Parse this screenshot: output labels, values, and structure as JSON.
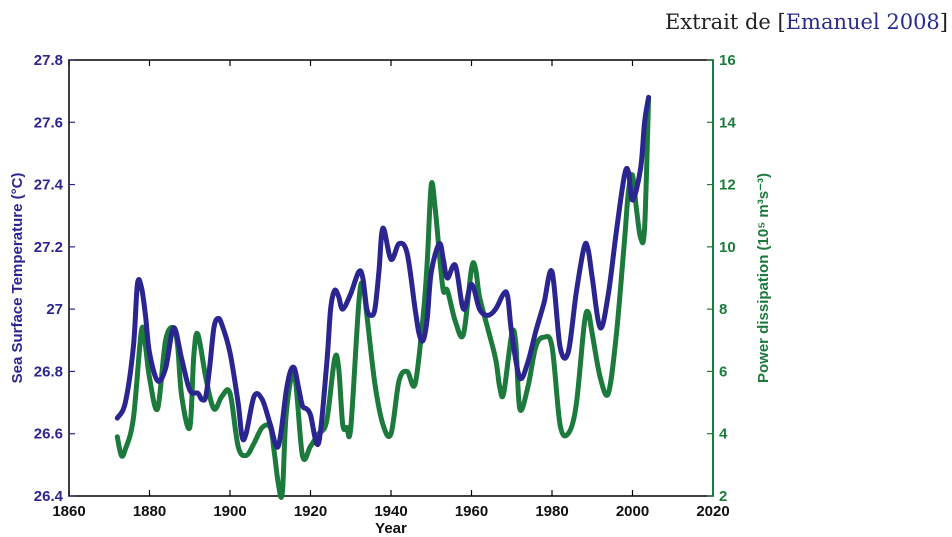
{
  "caption": {
    "prefix": "Extrait de [",
    "citation": "Emanuel 2008",
    "suffix": "]"
  },
  "chart_data": {
    "type": "line",
    "xlabel": "Year",
    "ylabel_left": "Sea Surface Temperature (°C)",
    "ylabel_right": "Power dissipation (10⁵ m³s⁻³)",
    "xlim": [
      1860,
      2020
    ],
    "ylim_left": [
      26.4,
      27.8
    ],
    "ylim_right": [
      2,
      16
    ],
    "x_ticks": [
      "1860",
      "1880",
      "1900",
      "1920",
      "1940",
      "1960",
      "1980",
      "2000",
      "2020"
    ],
    "y_left_ticks": [
      "26.4",
      "26.6",
      "26.8",
      "27",
      "27.2",
      "27.4",
      "27.6",
      "27.8"
    ],
    "y_right_ticks": [
      "2",
      "4",
      "6",
      "8",
      "10",
      "12",
      "14",
      "16"
    ],
    "colors": {
      "sst": "#2b2590",
      "pdi": "#1c7a3c",
      "left_axis": "#2b2590",
      "right_axis": "#1c7a3c"
    },
    "series": [
      {
        "axis": "left",
        "x": [
          1872,
          1874,
          1876,
          1877,
          1878,
          1879,
          1880,
          1882,
          1884,
          1886,
          1888,
          1890,
          1892,
          1893,
          1894,
          1895,
          1896,
          1897,
          1898,
          1900,
          1902,
          1903,
          1904,
          1906,
          1908,
          1910,
          1912,
          1914,
          1915,
          1916,
          1917,
          1918,
          1919,
          1920,
          1922,
          1924,
          1925,
          1926,
          1927,
          1928,
          1930,
          1932,
          1933,
          1934,
          1935,
          1936,
          1937,
          1938,
          1940,
          1942,
          1944,
          1946,
          1947,
          1948,
          1949,
          1950,
          1952,
          1953,
          1954,
          1956,
          1958,
          1960,
          1962,
          1964,
          1966,
          1968,
          1969,
          1970,
          1972,
          1974,
          1976,
          1978,
          1980,
          1982,
          1984,
          1986,
          1988,
          1989,
          1990,
          1992,
          1994,
          1996,
          1998,
          1999,
          2000,
          2002,
          2003,
          2004
        ],
        "values": [
          26.65,
          26.7,
          26.88,
          27.08,
          27.07,
          26.98,
          26.86,
          26.77,
          26.81,
          26.94,
          26.84,
          26.74,
          26.73,
          26.71,
          26.72,
          26.82,
          26.94,
          26.97,
          26.95,
          26.86,
          26.7,
          26.59,
          26.6,
          26.72,
          26.71,
          26.63,
          26.56,
          26.74,
          26.8,
          26.81,
          26.75,
          26.69,
          26.68,
          26.66,
          26.57,
          26.82,
          27.0,
          27.06,
          27.04,
          27.0,
          27.05,
          27.12,
          27.1,
          27.0,
          26.98,
          27.0,
          27.12,
          27.26,
          27.16,
          27.21,
          27.18,
          27.0,
          26.92,
          26.9,
          26.97,
          27.12,
          27.21,
          27.16,
          27.1,
          27.14,
          27.0,
          27.08,
          27.0,
          26.98,
          27.0,
          27.05,
          27.04,
          26.92,
          26.78,
          26.83,
          26.93,
          27.02,
          27.12,
          26.88,
          26.86,
          27.05,
          27.2,
          27.19,
          27.1,
          26.94,
          27.05,
          27.25,
          27.43,
          27.44,
          27.35,
          27.45,
          27.6,
          27.68
        ]
      },
      {
        "axis": "right",
        "x": [
          1872,
          1873,
          1874,
          1876,
          1878,
          1879,
          1880,
          1882,
          1884,
          1886,
          1887,
          1888,
          1890,
          1891,
          1892,
          1894,
          1896,
          1898,
          1900,
          1902,
          1904,
          1906,
          1908,
          1910,
          1911,
          1912,
          1913,
          1914,
          1916,
          1918,
          1920,
          1922,
          1924,
          1926,
          1927,
          1928,
          1929,
          1930,
          1932,
          1933,
          1934,
          1936,
          1938,
          1940,
          1942,
          1944,
          1946,
          1948,
          1949,
          1950,
          1951,
          1952,
          1953,
          1954,
          1956,
          1958,
          1960,
          1961,
          1962,
          1964,
          1966,
          1967,
          1968,
          1970,
          1971,
          1972,
          1974,
          1976,
          1978,
          1980,
          1982,
          1984,
          1986,
          1988,
          1989,
          1990,
          1992,
          1994,
          1996,
          1998,
          1999,
          2000,
          2001,
          2002,
          2003,
          2004
        ],
        "values": [
          3.9,
          3.3,
          3.5,
          4.5,
          7.3,
          6.8,
          5.8,
          4.8,
          7.0,
          7.4,
          6.8,
          5.2,
          4.2,
          6.5,
          7.2,
          5.8,
          4.8,
          5.2,
          5.3,
          3.6,
          3.3,
          3.7,
          4.2,
          4.2,
          3.4,
          2.4,
          2.1,
          4.7,
          5.9,
          3.3,
          3.6,
          4.0,
          4.4,
          6.4,
          6.1,
          4.3,
          4.2,
          4.2,
          8.2,
          8.8,
          7.8,
          5.6,
          4.3,
          4.0,
          5.7,
          6.0,
          5.6,
          7.8,
          9.5,
          12.0,
          11.2,
          9.8,
          8.6,
          8.6,
          7.6,
          7.2,
          9.3,
          9.3,
          8.4,
          7.4,
          6.4,
          5.5,
          5.3,
          7.2,
          6.9,
          4.8,
          5.5,
          6.8,
          7.1,
          6.8,
          4.3,
          4.0,
          4.9,
          7.5,
          7.9,
          7.2,
          5.8,
          5.3,
          7.2,
          10.2,
          11.8,
          12.3,
          11.2,
          10.3,
          10.6,
          14.8
        ]
      }
    ]
  }
}
